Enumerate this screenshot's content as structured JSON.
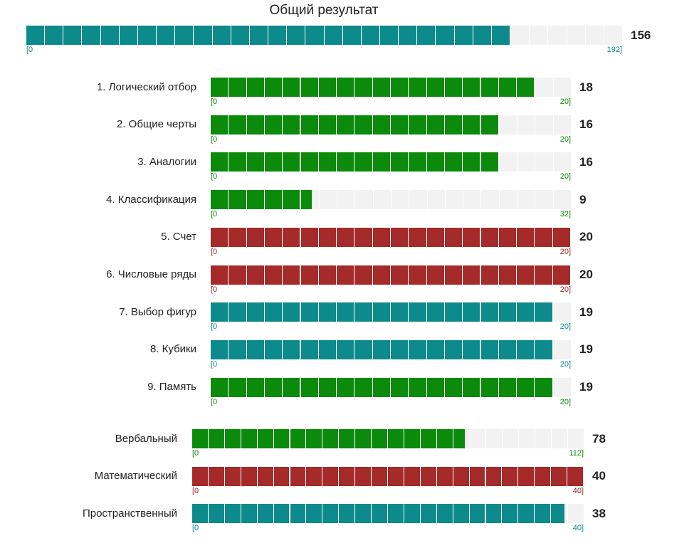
{
  "chart_data": {
    "type": "bar",
    "title": "Общий результат",
    "colors": {
      "green": "#0b8a0b",
      "red": "#a52a2a",
      "teal": "#0d8a8c"
    },
    "total": {
      "value": 156,
      "min": 0,
      "max": 192,
      "min_label": "[0",
      "max_label": "192]",
      "color": "teal"
    },
    "subtests": [
      {
        "label": "1. Логический отбор",
        "value": 18,
        "min": 0,
        "max": 20,
        "min_label": "[0",
        "max_label": "20]",
        "color": "green"
      },
      {
        "label": "2. Общие черты",
        "value": 16,
        "min": 0,
        "max": 20,
        "min_label": "[0",
        "max_label": "20]",
        "color": "green"
      },
      {
        "label": "3. Аналогии",
        "value": 16,
        "min": 0,
        "max": 20,
        "min_label": "[0",
        "max_label": "20]",
        "color": "green"
      },
      {
        "label": "4. Классификация",
        "value": 9,
        "min": 0,
        "max": 32,
        "min_label": "[0",
        "max_label": "32]",
        "color": "green"
      },
      {
        "label": "5. Счет",
        "value": 20,
        "min": 0,
        "max": 20,
        "min_label": "[0",
        "max_label": "20]",
        "color": "red"
      },
      {
        "label": "6. Числовые ряды",
        "value": 20,
        "min": 0,
        "max": 20,
        "min_label": "[0",
        "max_label": "20]",
        "color": "red"
      },
      {
        "label": "7. Выбор фигур",
        "value": 19,
        "min": 0,
        "max": 20,
        "min_label": "[0",
        "max_label": "20]",
        "color": "teal"
      },
      {
        "label": "8. Кубики",
        "value": 19,
        "min": 0,
        "max": 20,
        "min_label": "[0",
        "max_label": "20]",
        "color": "teal"
      },
      {
        "label": "9. Память",
        "value": 19,
        "min": 0,
        "max": 20,
        "min_label": "[0",
        "max_label": "20]",
        "color": "green"
      }
    ],
    "groups": [
      {
        "label": "Вербальный",
        "value": 78,
        "min": 0,
        "max": 112,
        "min_label": "[0",
        "max_label": "112]",
        "color": "green"
      },
      {
        "label": "Математический",
        "value": 40,
        "min": 0,
        "max": 40,
        "min_label": "[0",
        "max_label": "40]",
        "color": "red"
      },
      {
        "label": "Пространственный",
        "value": 38,
        "min": 0,
        "max": 40,
        "min_label": "[0",
        "max_label": "40]",
        "color": "teal"
      }
    ]
  }
}
